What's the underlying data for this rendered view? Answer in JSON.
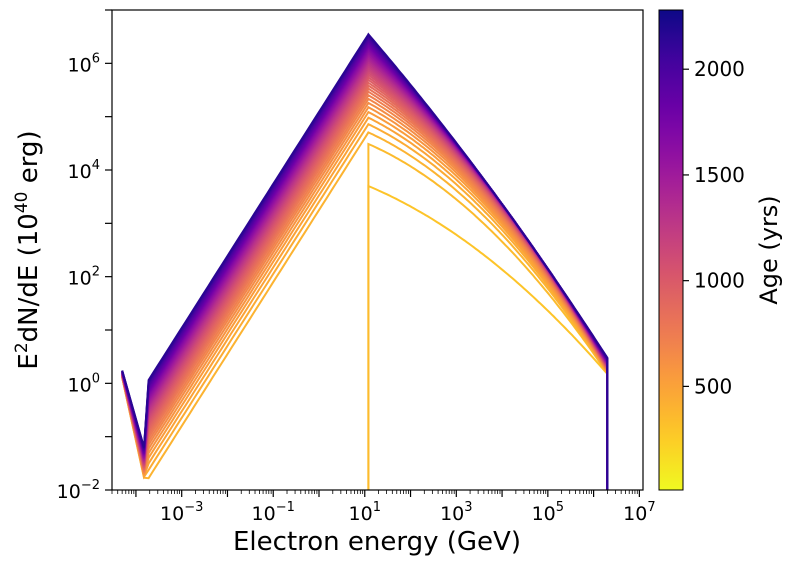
{
  "chart_data": {
    "type": "line",
    "title": "",
    "xlabel": "Electron energy (GeV)",
    "ylabel_parts": {
      "prefix": "E",
      "prefix_sup": "2",
      "middle": "dN/dE (10",
      "middle_sup": "40",
      "suffix": " erg)"
    },
    "x_scale": "log",
    "y_scale": "log",
    "xlim": [
      3e-05,
      12000000
    ],
    "ylim": [
      0.01,
      10000000
    ],
    "x_ticks": [
      {
        "value": 0.001,
        "base": "10",
        "exp": "−3"
      },
      {
        "value": 0.1,
        "base": "10",
        "exp": "−1"
      },
      {
        "value": 10,
        "base": "10",
        "exp": "1"
      },
      {
        "value": 1000,
        "base": "10",
        "exp": "3"
      },
      {
        "value": 100000,
        "base": "10",
        "exp": "5"
      },
      {
        "value": 10000000,
        "base": "10",
        "exp": "7"
      }
    ],
    "y_ticks": [
      {
        "value": 0.01,
        "base": "10",
        "exp": "−2"
      },
      {
        "value": 1,
        "base": "10",
        "exp": "0"
      },
      {
        "value": 100,
        "base": "10",
        "exp": "2"
      },
      {
        "value": 10000,
        "base": "10",
        "exp": "4"
      },
      {
        "value": 1000000,
        "base": "10",
        "exp": "6"
      }
    ],
    "colorbar": {
      "label": "Age (yrs)",
      "range": [
        10,
        2280
      ],
      "ticks": [
        {
          "value": 500,
          "label": "500"
        },
        {
          "value": 1000,
          "label": "1000"
        },
        {
          "value": 1500,
          "label": "1500"
        },
        {
          "value": 2000,
          "label": "2000"
        }
      ],
      "colormap": "plasma",
      "colormap_stops": [
        "#f0f921",
        "#fdca26",
        "#fb9f3a",
        "#ed7953",
        "#d8576b",
        "#bd3786",
        "#9c179e",
        "#7201a8",
        "#46039f",
        "#0d0887"
      ]
    },
    "series_model": {
      "count": 40,
      "age_min": 300,
      "age_max": 2150,
      "peak_energy_GeV": 12,
      "min_energy_GeV": 5e-05,
      "max_energy_GeV": 2000000,
      "low_energy_slope": 1.35,
      "high_energy_slope_start": -0.36,
      "high_energy_slope_end": -1.0,
      "peak_value_range": [
        5000,
        3500000
      ],
      "cutoff_value_range": [
        1.5,
        3
      ],
      "dip_energy_GeV": 0.00015
    },
    "series": [
      {
        "name": "Age 300 yrs",
        "age": 300,
        "x": [
          12,
          12,
          13,
          100,
          1000,
          10000,
          100000,
          500000,
          2000000,
          2000000
        ],
        "y": [
          0.01,
          1500,
          5500,
          2000,
          600,
          150,
          40,
          18,
          3,
          0.01
        ]
      },
      {
        "name": "Age 2150 yrs",
        "age": 2150,
        "x": [
          5e-05,
          0.00015,
          0.001,
          0.1,
          1,
          12,
          100,
          1000,
          10000,
          100000,
          500000,
          2000000,
          2000000
        ],
        "y": [
          1.7,
          0.06,
          1.2,
          1500,
          60000,
          3800000,
          1000000,
          150000,
          10000,
          300,
          40,
          4,
          0.01
        ]
      }
    ]
  }
}
